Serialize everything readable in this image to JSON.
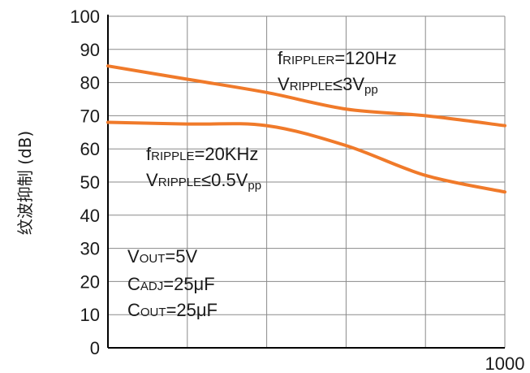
{
  "chart_data": {
    "type": "line",
    "ylabel": "纹波抑制 (dB)",
    "ylim": [
      0,
      100
    ],
    "yticks": [
      0,
      10,
      20,
      30,
      40,
      50,
      60,
      70,
      80,
      90,
      100
    ],
    "xticks_labels": [
      "1000"
    ],
    "grid": true,
    "colors": {
      "series": "#f07a2a",
      "grid": "#8a8a8a",
      "axis": "#000000"
    },
    "x": [
      0,
      1,
      2,
      3,
      4,
      5
    ],
    "series": [
      {
        "values": [
          85,
          81,
          77,
          72,
          70,
          67
        ]
      },
      {
        "values": [
          68,
          67.5,
          67,
          61,
          52,
          47
        ]
      }
    ],
    "annotations": {
      "a1": {
        "sym": "f",
        "sub": "RIPPLER",
        "rest": "=120Hz"
      },
      "a2": {
        "sym": "V",
        "sub": "RIPPLE",
        "rest": "≤3V",
        "sub2": "pp"
      },
      "a3": {
        "sym": "f",
        "sub": "RIPPLE",
        "rest": "=20KHz"
      },
      "a4": {
        "sym": "V",
        "sub": "RIPPLE",
        "rest": "≤0.5V",
        "sub2": "pp"
      },
      "a5": {
        "sym": "V",
        "sub": "OUT",
        "rest": "=5V"
      },
      "a6": {
        "sym": "C",
        "sub": "ADJ",
        "rest": "=25μF"
      },
      "a7": {
        "sym": "C",
        "sub": "OUT",
        "rest": "=25μF"
      }
    }
  }
}
